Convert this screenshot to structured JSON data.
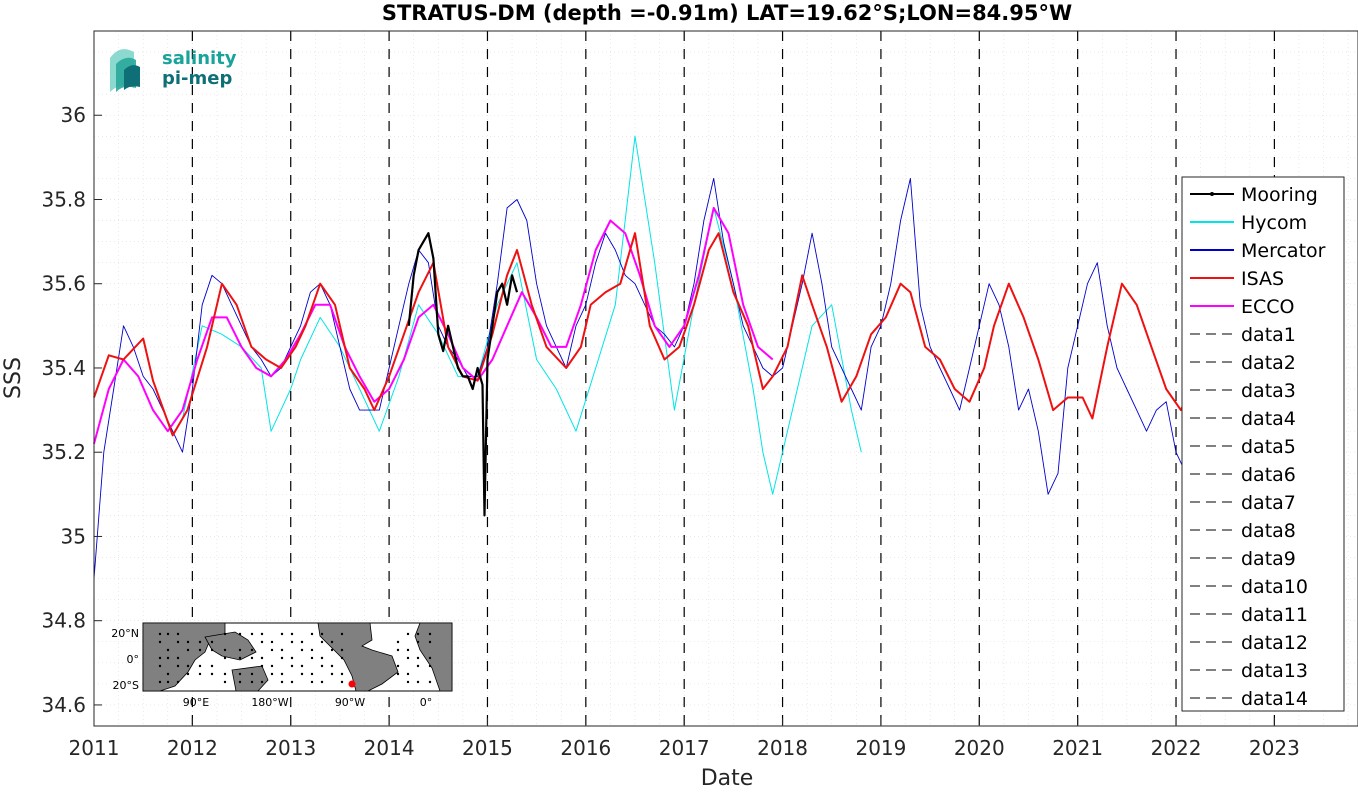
{
  "chart_data": {
    "type": "line",
    "title": "STRATUS-DM (depth =-0.91m) LAT=19.62°S;LON=84.95°W",
    "xlabel": "Date",
    "ylabel": "SSS",
    "xlim": [
      2011.0,
      2023.85
    ],
    "ylim": [
      34.55,
      36.2
    ],
    "x_ticks": [
      "2011",
      "2012",
      "2013",
      "2014",
      "2015",
      "2016",
      "2017",
      "2018",
      "2019",
      "2020",
      "2021",
      "2022",
      "2023"
    ],
    "y_ticks": [
      "34.6",
      "34.8",
      "35",
      "35.2",
      "35.4",
      "35.6",
      "35.8",
      "36"
    ],
    "grid": true,
    "legend_position": "right",
    "series": [
      {
        "name": "Mooring",
        "color": "#000000",
        "x": [
          2014.2,
          2014.25,
          2014.3,
          2014.35,
          2014.4,
          2014.45,
          2014.5,
          2014.55,
          2014.6,
          2014.65,
          2014.7,
          2014.75,
          2014.8,
          2014.85,
          2014.9,
          2014.95,
          2014.97,
          2015.0,
          2015.05,
          2015.1,
          2015.15,
          2015.2,
          2015.25,
          2015.3
        ],
        "values": [
          35.5,
          35.62,
          35.68,
          35.7,
          35.72,
          35.66,
          35.48,
          35.44,
          35.5,
          35.45,
          35.4,
          35.38,
          35.38,
          35.35,
          35.4,
          35.36,
          35.05,
          35.42,
          35.5,
          35.58,
          35.6,
          35.55,
          35.62,
          35.58
        ]
      },
      {
        "name": "Hycom",
        "color": "#00e5e5",
        "x": [
          2011.9,
          2012.1,
          2012.3,
          2012.5,
          2012.7,
          2012.8,
          2012.9,
          2013.0,
          2013.1,
          2013.3,
          2013.5,
          2013.7,
          2013.9,
          2014.1,
          2014.3,
          2014.5,
          2014.7,
          2014.9,
          2015.1,
          2015.3,
          2015.5,
          2015.7,
          2015.9,
          2016.1,
          2016.3,
          2016.5,
          2016.7,
          2016.9,
          2017.1,
          2017.3,
          2017.5,
          2017.7,
          2017.8,
          2017.9,
          2018.1,
          2018.3,
          2018.5,
          2018.7,
          2018.8
        ],
        "values": [
          35.28,
          35.5,
          35.48,
          35.45,
          35.4,
          35.25,
          35.3,
          35.35,
          35.42,
          35.52,
          35.45,
          35.35,
          35.25,
          35.38,
          35.55,
          35.48,
          35.38,
          35.38,
          35.55,
          35.65,
          35.42,
          35.35,
          35.25,
          35.4,
          35.55,
          35.95,
          35.65,
          35.3,
          35.55,
          35.78,
          35.6,
          35.35,
          35.2,
          35.1,
          35.3,
          35.5,
          35.55,
          35.3,
          35.2
        ]
      },
      {
        "name": "Mercator",
        "color": "#0000cd",
        "x": [
          2011.0,
          2011.1,
          2011.2,
          2011.3,
          2011.4,
          2011.5,
          2011.6,
          2011.7,
          2011.8,
          2011.9,
          2012.0,
          2012.1,
          2012.2,
          2012.3,
          2012.4,
          2012.5,
          2012.6,
          2012.7,
          2012.8,
          2012.9,
          2013.0,
          2013.1,
          2013.2,
          2013.3,
          2013.4,
          2013.5,
          2013.6,
          2013.7,
          2013.8,
          2013.9,
          2014.0,
          2014.1,
          2014.2,
          2014.3,
          2014.4,
          2014.5,
          2014.6,
          2014.7,
          2014.8,
          2014.9,
          2015.0,
          2015.1,
          2015.2,
          2015.3,
          2015.4,
          2015.5,
          2015.6,
          2015.7,
          2015.8,
          2015.9,
          2016.0,
          2016.1,
          2016.2,
          2016.3,
          2016.4,
          2016.5,
          2016.6,
          2016.7,
          2016.8,
          2016.9,
          2017.0,
          2017.1,
          2017.2,
          2017.3,
          2017.4,
          2017.5,
          2017.6,
          2017.7,
          2017.8,
          2017.9,
          2018.0,
          2018.1,
          2018.2,
          2018.3,
          2018.4,
          2018.5,
          2018.6,
          2018.7,
          2018.8,
          2018.9,
          2019.0,
          2019.1,
          2019.2,
          2019.3,
          2019.4,
          2019.5,
          2019.6,
          2019.7,
          2019.8,
          2019.9,
          2020.0,
          2020.1,
          2020.2,
          2020.3,
          2020.4,
          2020.5,
          2020.6,
          2020.7,
          2020.8,
          2020.9,
          2021.0,
          2021.1,
          2021.2,
          2021.3,
          2021.4,
          2021.5,
          2021.6,
          2021.7,
          2021.8,
          2021.9,
          2022.0,
          2022.1
        ],
        "values": [
          34.9,
          35.2,
          35.35,
          35.5,
          35.45,
          35.38,
          35.35,
          35.3,
          35.25,
          35.2,
          35.35,
          35.55,
          35.62,
          35.6,
          35.55,
          35.5,
          35.45,
          35.42,
          35.38,
          35.4,
          35.45,
          35.5,
          35.58,
          35.6,
          35.55,
          35.45,
          35.35,
          35.3,
          35.3,
          35.3,
          35.4,
          35.5,
          35.6,
          35.68,
          35.65,
          35.5,
          35.45,
          35.42,
          35.38,
          35.38,
          35.45,
          35.6,
          35.78,
          35.8,
          35.75,
          35.6,
          35.5,
          35.45,
          35.4,
          35.5,
          35.55,
          35.65,
          35.72,
          35.68,
          35.62,
          35.6,
          35.55,
          35.5,
          35.48,
          35.45,
          35.5,
          35.6,
          35.75,
          35.85,
          35.7,
          35.6,
          35.5,
          35.45,
          35.4,
          35.38,
          35.4,
          35.5,
          35.6,
          35.72,
          35.6,
          35.45,
          35.4,
          35.35,
          35.3,
          35.45,
          35.5,
          35.6,
          35.75,
          35.85,
          35.55,
          35.45,
          35.4,
          35.35,
          35.3,
          35.4,
          35.5,
          35.6,
          35.55,
          35.45,
          35.3,
          35.35,
          35.25,
          35.1,
          35.15,
          35.4,
          35.5,
          35.6,
          35.65,
          35.5,
          35.4,
          35.35,
          35.3,
          35.25,
          35.3,
          35.32,
          35.2,
          35.15
        ]
      },
      {
        "name": "ISAS",
        "color": "#ee1111",
        "x": [
          2011.0,
          2011.15,
          2011.3,
          2011.5,
          2011.6,
          2011.8,
          2011.95,
          2012.15,
          2012.3,
          2012.45,
          2012.6,
          2012.75,
          2012.9,
          2013.05,
          2013.15,
          2013.3,
          2013.45,
          2013.6,
          2013.75,
          2013.85,
          2014.0,
          2014.15,
          2014.3,
          2014.45,
          2014.6,
          2014.75,
          2014.9,
          2015.05,
          2015.2,
          2015.3,
          2015.45,
          2015.6,
          2015.8,
          2015.95,
          2016.05,
          2016.2,
          2016.35,
          2016.5,
          2016.65,
          2016.8,
          2016.95,
          2017.1,
          2017.25,
          2017.35,
          2017.5,
          2017.65,
          2017.8,
          2017.9,
          2018.05,
          2018.2,
          2018.3,
          2018.45,
          2018.6,
          2018.75,
          2018.9,
          2019.05,
          2019.2,
          2019.3,
          2019.45,
          2019.6,
          2019.75,
          2019.9,
          2020.05,
          2020.15,
          2020.3,
          2020.45,
          2020.6,
          2020.75,
          2020.9,
          2021.05,
          2021.15,
          2021.3,
          2021.45,
          2021.6,
          2021.75,
          2021.9,
          2022.05,
          2022.15
        ],
        "values": [
          35.33,
          35.43,
          35.42,
          35.47,
          35.37,
          35.24,
          35.3,
          35.45,
          35.6,
          35.55,
          35.45,
          35.42,
          35.4,
          35.45,
          35.5,
          35.6,
          35.55,
          35.4,
          35.35,
          35.3,
          35.38,
          35.48,
          35.58,
          35.65,
          35.45,
          35.38,
          35.37,
          35.48,
          35.62,
          35.68,
          35.55,
          35.45,
          35.4,
          35.45,
          35.55,
          35.58,
          35.6,
          35.72,
          35.5,
          35.42,
          35.45,
          35.55,
          35.68,
          35.72,
          35.58,
          35.5,
          35.35,
          35.38,
          35.45,
          35.62,
          35.55,
          35.45,
          35.32,
          35.38,
          35.48,
          35.52,
          35.6,
          35.58,
          35.45,
          35.42,
          35.35,
          35.32,
          35.4,
          35.5,
          35.6,
          35.52,
          35.42,
          35.3,
          35.33,
          35.33,
          35.28,
          35.45,
          35.6,
          35.55,
          35.45,
          35.35,
          35.3,
          35.35
        ]
      },
      {
        "name": "ECCO",
        "color": "#ff00ff",
        "x": [
          2011.0,
          2011.15,
          2011.3,
          2011.45,
          2011.6,
          2011.75,
          2011.9,
          2012.05,
          2012.2,
          2012.35,
          2012.5,
          2012.65,
          2012.8,
          2012.95,
          2013.1,
          2013.25,
          2013.4,
          2013.55,
          2013.7,
          2013.85,
          2014.0,
          2014.15,
          2014.3,
          2014.45,
          2014.6,
          2014.75,
          2014.9,
          2015.05,
          2015.2,
          2015.35,
          2015.5,
          2015.65,
          2015.8,
          2015.95,
          2016.1,
          2016.25,
          2016.4,
          2016.55,
          2016.7,
          2016.85,
          2017.0,
          2017.15,
          2017.3,
          2017.45,
          2017.6,
          2017.75,
          2017.9
        ],
        "values": [
          35.22,
          35.35,
          35.42,
          35.38,
          35.3,
          35.25,
          35.3,
          35.42,
          35.52,
          35.52,
          35.45,
          35.4,
          35.38,
          35.42,
          35.48,
          35.55,
          35.55,
          35.45,
          35.38,
          35.32,
          35.35,
          35.42,
          35.52,
          35.55,
          35.48,
          35.4,
          35.37,
          35.42,
          35.5,
          35.58,
          35.52,
          35.45,
          35.45,
          35.55,
          35.68,
          35.75,
          35.72,
          35.62,
          35.5,
          35.45,
          35.5,
          35.62,
          35.78,
          35.72,
          35.55,
          35.45,
          35.42
        ]
      },
      {
        "name": "data1",
        "color": "#000000",
        "x": [],
        "values": []
      },
      {
        "name": "data2",
        "color": "#000000",
        "x": [],
        "values": []
      },
      {
        "name": "data3",
        "color": "#000000",
        "x": [],
        "values": []
      },
      {
        "name": "data4",
        "color": "#000000",
        "x": [],
        "values": []
      },
      {
        "name": "data5",
        "color": "#000000",
        "x": [],
        "values": []
      },
      {
        "name": "data6",
        "color": "#000000",
        "x": [],
        "values": []
      },
      {
        "name": "data7",
        "color": "#000000",
        "x": [],
        "values": []
      },
      {
        "name": "data8",
        "color": "#000000",
        "x": [],
        "values": []
      },
      {
        "name": "data9",
        "color": "#000000",
        "x": [],
        "values": []
      },
      {
        "name": "data10",
        "color": "#000000",
        "x": [],
        "values": []
      },
      {
        "name": "data11",
        "color": "#000000",
        "x": [],
        "values": []
      },
      {
        "name": "data12",
        "color": "#000000",
        "x": [],
        "values": []
      },
      {
        "name": "data13",
        "color": "#000000",
        "x": [],
        "values": []
      },
      {
        "name": "data14",
        "color": "#000000",
        "x": [],
        "values": []
      }
    ],
    "vertical_dashed_lines_x": [
      2012,
      2013,
      2014,
      2015,
      2016,
      2017,
      2018,
      2019,
      2020,
      2021,
      2022,
      2023
    ]
  },
  "logo": {
    "line1": "salinity",
    "line2": "pi-mep",
    "color": "#1aa39a"
  },
  "inset_map": {
    "lat_labels": [
      "20°N",
      "0°",
      "20°S"
    ],
    "lon_labels": [
      "90°E",
      "180°W",
      "90°W",
      "0°"
    ],
    "marker_color": "#ff0000"
  }
}
